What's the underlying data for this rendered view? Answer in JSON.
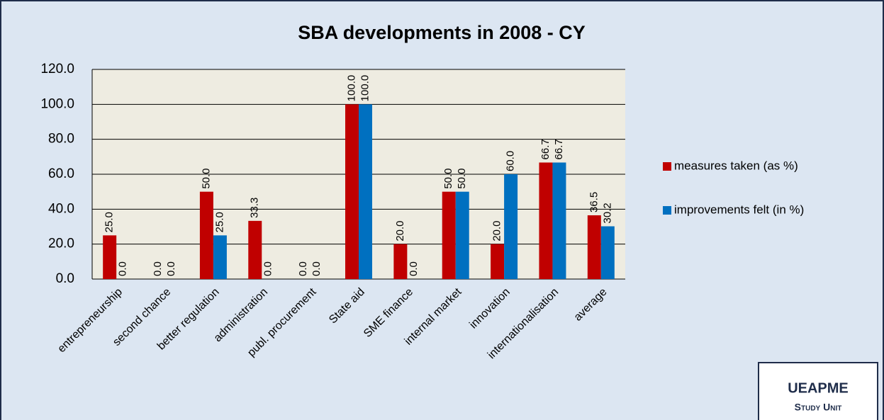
{
  "chart_data": {
    "type": "bar",
    "title": "SBA developments in 2008 - CY",
    "categories": [
      "entrepreneurship",
      "second chance",
      "better regulation",
      "administration",
      "publ. procurement",
      "State aid",
      "SME finance",
      "internal market",
      "innovation",
      "internationalisation",
      "average"
    ],
    "series": [
      {
        "name": "measures taken (as %)",
        "color": "#c00000",
        "values": [
          25,
          0,
          50,
          33.3,
          0,
          100,
          20,
          50,
          20,
          66.7,
          36.5
        ],
        "value_labels": [
          "25.0",
          "0.0",
          "50.0",
          "33.3",
          "0.0",
          "100.0",
          "20.0",
          "50.0",
          "20.0",
          "66.7",
          "36.5"
        ]
      },
      {
        "name": "improvements felt  (in %)",
        "color": "#0070c0",
        "values": [
          0,
          0,
          25,
          0,
          0,
          100,
          0,
          50,
          60,
          66.7,
          30.2
        ],
        "value_labels": [
          "0.0",
          "0.0",
          "25.0",
          "0.0",
          "0.0",
          "100.0",
          "0.0",
          "50.0",
          "60.0",
          "66.7",
          "30.2"
        ]
      }
    ],
    "ylim": [
      0,
      120
    ],
    "yticks": [
      {
        "value": 0,
        "label": "0.0"
      },
      {
        "value": 20,
        "label": "20.0"
      },
      {
        "value": 40,
        "label": "40.0"
      },
      {
        "value": 60,
        "label": "60.0"
      },
      {
        "value": 80,
        "label": "80.0"
      },
      {
        "value": 100,
        "label": "100.0"
      },
      {
        "value": 120,
        "label": "120.0"
      }
    ],
    "grid": true,
    "legend": "right",
    "annotations": [
      "UEAPME",
      "Study Unit"
    ]
  }
}
